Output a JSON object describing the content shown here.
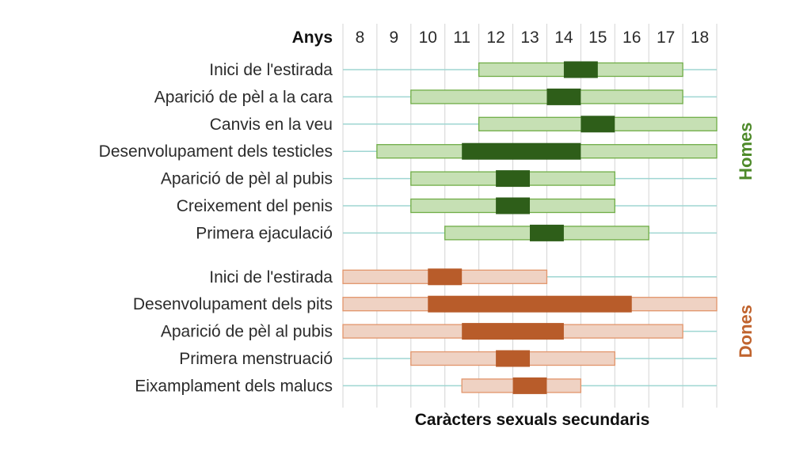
{
  "chart_data": {
    "type": "range",
    "title": "Caràcters sexuals secundaris",
    "axis_label": "Anys",
    "x_ticks": [
      8,
      9,
      10,
      11,
      12,
      13,
      14,
      15,
      16,
      17,
      18
    ],
    "xlim": [
      7.5,
      18.5
    ],
    "grid": true,
    "groups": [
      {
        "name": "Homes",
        "color_light": "#c6e0b4",
        "color_light_border": "#70ad47",
        "color_dark": "#2e5e19",
        "color_label": "#4e8a2a",
        "rows": [
          {
            "label": "Inici de l'estirada",
            "range": [
              11.5,
              17.5
            ],
            "peak": [
              14,
              15
            ]
          },
          {
            "label": "Aparició de pèl a la cara",
            "range": [
              9.5,
              17.5
            ],
            "peak": [
              13.5,
              14.5
            ]
          },
          {
            "label": "Canvis en la veu",
            "range": [
              11.5,
              18.5
            ],
            "peak": [
              14.5,
              15.5
            ]
          },
          {
            "label": "Desenvolupament dels testicles",
            "range": [
              8.5,
              18.5
            ],
            "peak": [
              11,
              14.5
            ]
          },
          {
            "label": "Aparició de pèl al pubis",
            "range": [
              9.5,
              15.5
            ],
            "peak": [
              12,
              13
            ]
          },
          {
            "label": "Creixement del penis",
            "range": [
              9.5,
              15.5
            ],
            "peak": [
              12,
              13
            ]
          },
          {
            "label": "Primera ejaculació",
            "range": [
              10.5,
              16.5
            ],
            "peak": [
              13,
              14
            ]
          }
        ]
      },
      {
        "name": "Dones",
        "color_light": "#efd2c3",
        "color_light_border": "#e2956b",
        "color_dark": "#b85c2a",
        "color_label": "#c0632d",
        "rows": [
          {
            "label": "Inici de l'estirada",
            "range": [
              7.5,
              13.5
            ],
            "peak": [
              10,
              11
            ]
          },
          {
            "label": "Desenvolupament dels pits",
            "range": [
              7.5,
              18.5
            ],
            "peak": [
              10,
              16
            ]
          },
          {
            "label": "Aparició de pèl al pubis",
            "range": [
              7.5,
              17.5
            ],
            "peak": [
              11,
              14
            ]
          },
          {
            "label": "Primera menstruació",
            "range": [
              9.5,
              15.5
            ],
            "peak": [
              12,
              13
            ]
          },
          {
            "label": "Eixamplament dels malucs",
            "range": [
              11,
              14.5
            ],
            "peak": [
              12.5,
              13.5
            ]
          }
        ]
      }
    ]
  }
}
